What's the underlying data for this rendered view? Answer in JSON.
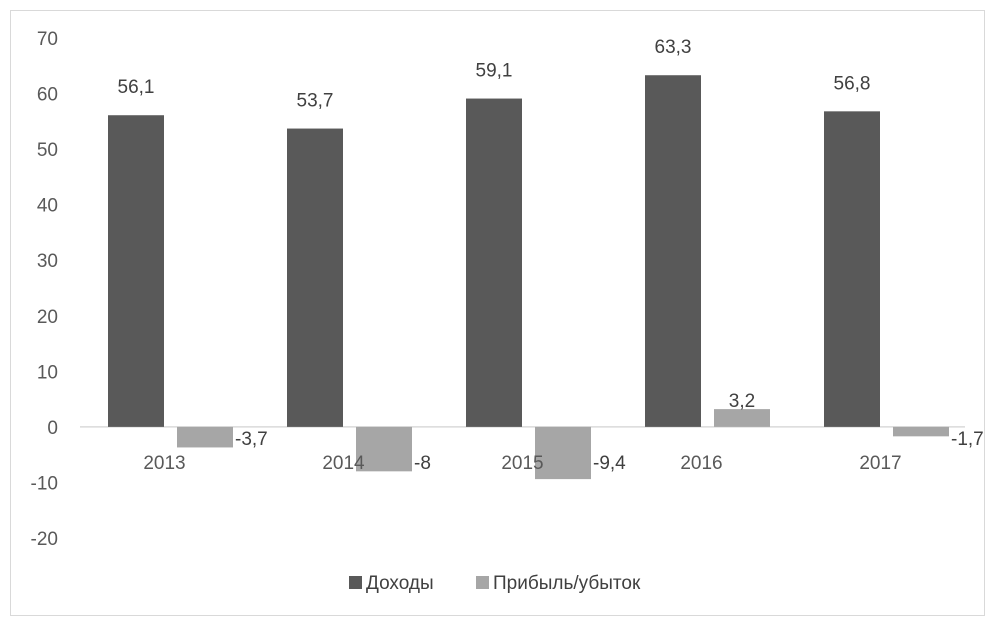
{
  "chart_data": {
    "type": "bar",
    "categories": [
      "2013",
      "2014",
      "2015",
      "2016",
      "2017"
    ],
    "series": [
      {
        "name": "Доходы",
        "values": [
          56.1,
          53.7,
          59.1,
          63.3,
          56.8
        ],
        "labels": [
          "56,1",
          "53,7",
          "59,1",
          "63,3",
          "56,8"
        ],
        "color": "#595959"
      },
      {
        "name": "Прибыль/убыток",
        "values": [
          -3.7,
          -8,
          -9.4,
          3.2,
          -1.7
        ],
        "labels": [
          "-3,7",
          "-8",
          "-9,4",
          "3,2",
          "-1,7"
        ],
        "color": "#a6a6a6"
      }
    ],
    "ylim": [
      -20,
      70
    ],
    "yticks": [
      70,
      60,
      50,
      40,
      30,
      20,
      10,
      0,
      -10,
      -20
    ],
    "ytick_labels": [
      "70",
      "60",
      "50",
      "40",
      "30",
      "20",
      "10",
      "0",
      "-10",
      "-20"
    ],
    "grid": false,
    "legend_position": "bottom",
    "title": "",
    "xlabel": "",
    "ylabel": ""
  }
}
